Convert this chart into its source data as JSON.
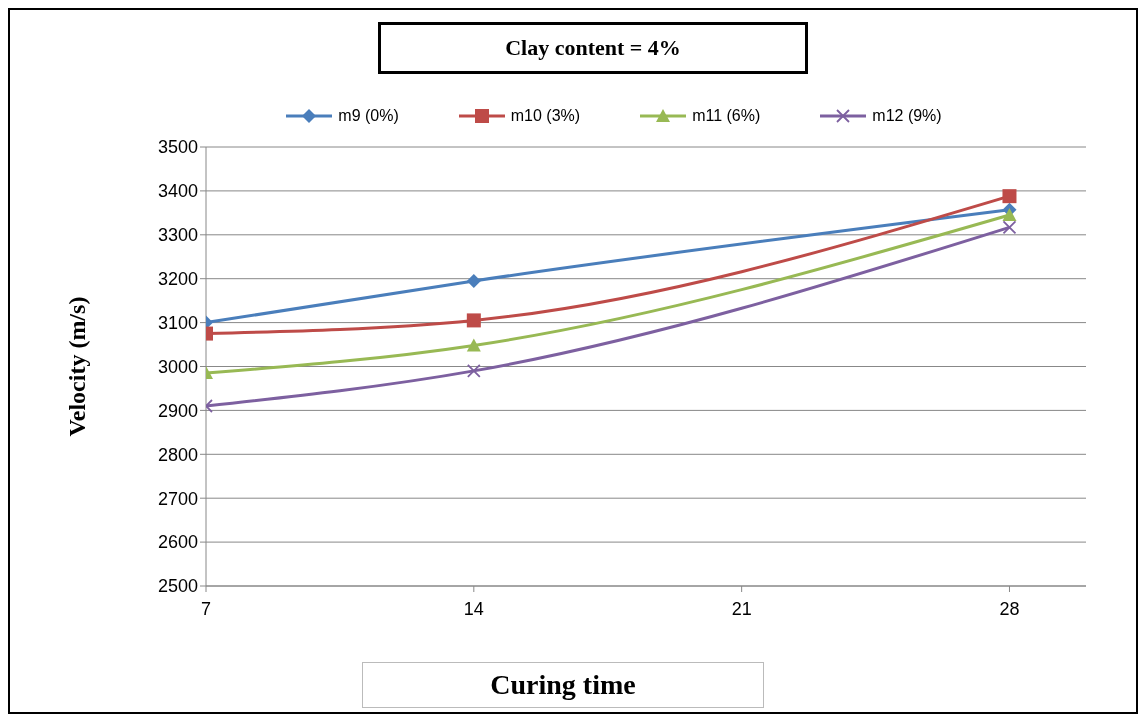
{
  "chart_data": {
    "type": "line",
    "title": "Clay content = 4%",
    "xlabel": "Curing time",
    "ylabel": "Velocity (m/s)",
    "x": [
      7,
      14,
      28
    ],
    "series": [
      {
        "name": "m9 (0%)",
        "color": "#4a7ebb",
        "marker": "diamond",
        "values": [
          3100,
          3195,
          3357
        ]
      },
      {
        "name": "m10 (3%)",
        "color": "#be4b48",
        "marker": "square",
        "values": [
          3075,
          3105,
          3388
        ]
      },
      {
        "name": "m11 (6%)",
        "color": "#98b954",
        "marker": "triangle",
        "values": [
          2985,
          3048,
          3345
        ]
      },
      {
        "name": "m12 (9%)",
        "color": "#7d60a0",
        "marker": "cross",
        "values": [
          2910,
          2990,
          3317
        ]
      }
    ],
    "xlim": [
      7,
      30
    ],
    "xticks": [
      7,
      14,
      21,
      28
    ],
    "ylim": [
      2500,
      3500
    ],
    "yticks": [
      2500,
      2600,
      2700,
      2800,
      2900,
      3000,
      3100,
      3200,
      3300,
      3400,
      3500
    ],
    "grid": "y",
    "legend": "top"
  }
}
